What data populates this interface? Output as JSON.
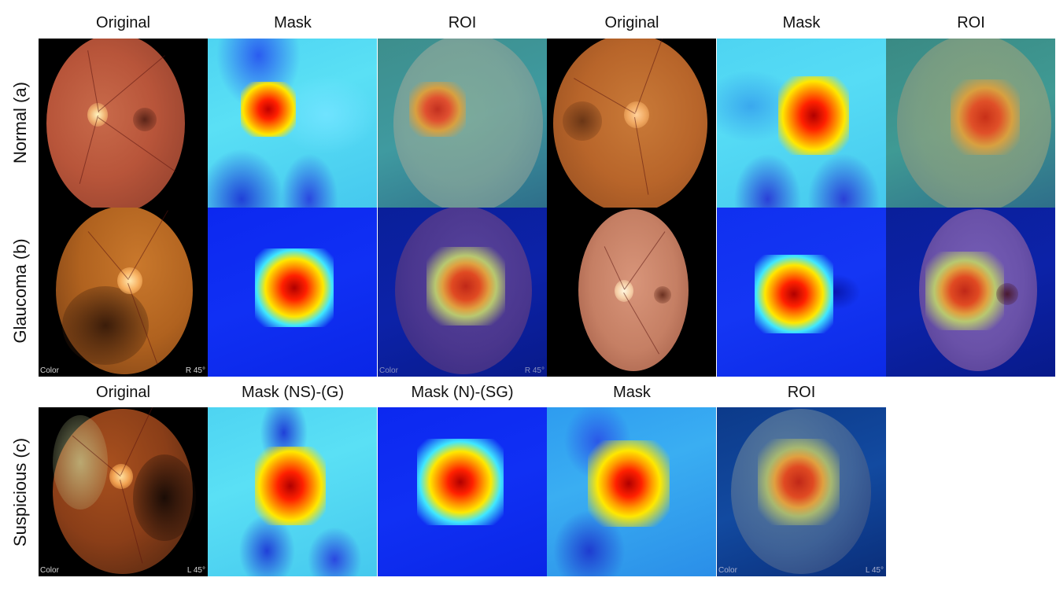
{
  "column_headers": {
    "top_original_1": "Original",
    "top_mask_1": "Mask",
    "top_roi_1": "ROI",
    "top_original_2": "Original",
    "top_mask_2": "Mask",
    "top_roi_2": "ROI",
    "bottom_original": "Original",
    "bottom_mask_ns_g": "Mask (NS)-(G)",
    "bottom_mask_n_sg": "Mask (N)-(SG)",
    "bottom_mask": "Mask",
    "bottom_roi": "ROI"
  },
  "row_labels": {
    "normal": "Normal (a)",
    "glaucoma": "Glaucoma (b)",
    "suspicious": "Suspicious (c)"
  },
  "image_overlays": {
    "color_tag": "Color",
    "right_45": "R  45°",
    "left_45": "L  45°"
  },
  "colors": {
    "fundus_orange": "#c0552a",
    "mask_cyan": "#3fd6f0",
    "mask_blue": "#0a2ef0",
    "hot_red": "#d40000",
    "hot_yellow": "#ffe800"
  }
}
